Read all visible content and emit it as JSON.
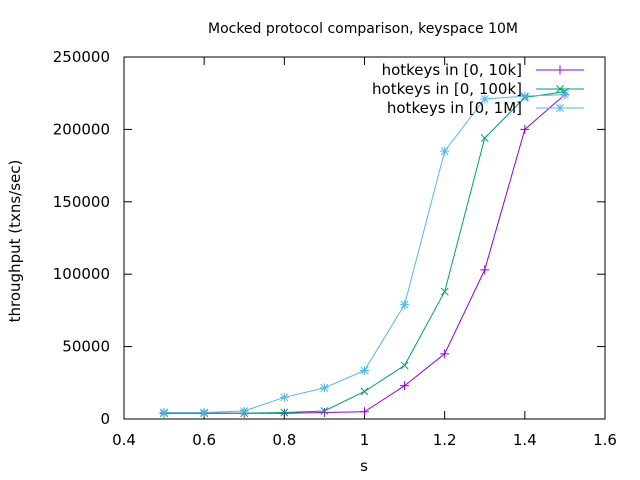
{
  "chart_data": {
    "type": "line",
    "title": "Mocked protocol comparison, keyspace 10M",
    "xlabel": "s",
    "ylabel": "throughput (txns/sec)",
    "xlim": [
      0.4,
      1.6
    ],
    "ylim": [
      0,
      250000
    ],
    "xticks": [
      0.4,
      0.6,
      0.8,
      1.0,
      1.2,
      1.4,
      1.6
    ],
    "xtick_labels": [
      "0.4",
      "0.6",
      "0.8",
      "1",
      "1.2",
      "1.4",
      "1.6"
    ],
    "yticks": [
      0,
      50000,
      100000,
      150000,
      200000,
      250000
    ],
    "ytick_labels": [
      "0",
      "50000",
      "100000",
      "150000",
      "200000",
      "250000"
    ],
    "grid": false,
    "legend_position": "top-right",
    "series": [
      {
        "name": "hotkeys in [0, 10k]",
        "color": "#9400d3",
        "marker": "plus",
        "x": [
          0.5,
          0.6,
          0.7,
          0.8,
          0.9,
          1.0,
          1.1,
          1.2,
          1.3,
          1.4,
          1.5
        ],
        "y": [
          4000,
          4000,
          4000,
          4000,
          4500,
          5000,
          23000,
          45000,
          103000,
          200000,
          224000
        ]
      },
      {
        "name": "hotkeys in [0, 100k]",
        "color": "#009e73",
        "marker": "cross",
        "x": [
          0.5,
          0.6,
          0.7,
          0.8,
          0.9,
          1.0,
          1.1,
          1.2,
          1.3,
          1.4,
          1.5
        ],
        "y": [
          4000,
          4000,
          4000,
          4500,
          5500,
          19000,
          37000,
          88000,
          194000,
          222000,
          226000
        ]
      },
      {
        "name": "hotkeys in [0, 1M]",
        "color": "#56b4e9",
        "marker": "star",
        "x": [
          0.5,
          0.6,
          0.7,
          0.8,
          0.9,
          1.0,
          1.1,
          1.2,
          1.3,
          1.4,
          1.5
        ],
        "y": [
          4500,
          4500,
          5500,
          15000,
          21500,
          33500,
          79000,
          185000,
          221000,
          223000,
          224000
        ]
      }
    ]
  }
}
